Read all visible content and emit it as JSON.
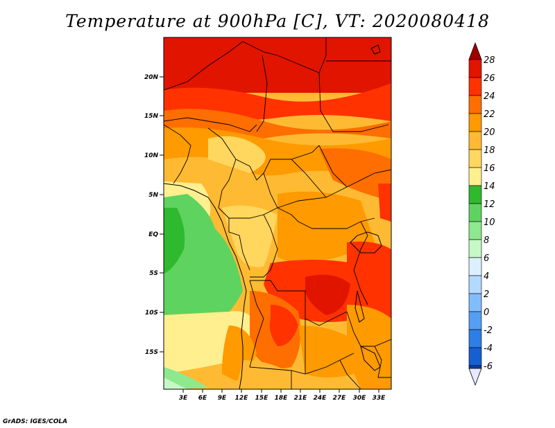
{
  "title": "Temperature at 900hPa [C], VT: 2020080418",
  "footer": "GrADS: IGES/COLA",
  "map": {
    "lat_labels": [
      "20N",
      "15N",
      "10N",
      "5N",
      "EQ",
      "5S",
      "10S",
      "15S"
    ],
    "lon_labels": [
      "3E",
      "6E",
      "9E",
      "12E",
      "15E",
      "18E",
      "21E",
      "24E",
      "27E",
      "30E",
      "33E"
    ]
  },
  "colorbar": {
    "labels": [
      "28",
      "26",
      "24",
      "22",
      "20",
      "18",
      "16",
      "14",
      "12",
      "10",
      "8",
      "6",
      "4",
      "2",
      "0",
      "-2",
      "-4",
      "-6"
    ],
    "colors": [
      "#a00000",
      "#e11400",
      "#ff3200",
      "#ff6e00",
      "#ff9a00",
      "#ffba33",
      "#ffd65e",
      "#ffef8e",
      "#2fb92f",
      "#5fd35f",
      "#8ee88e",
      "#c6f7c6",
      "#dcf0ff",
      "#b3d9ff",
      "#82bdfb",
      "#559ff2",
      "#2d7fe6",
      "#155fcf",
      "#0a3fb0",
      "#061e84",
      "#e8e8ff"
    ]
  }
}
